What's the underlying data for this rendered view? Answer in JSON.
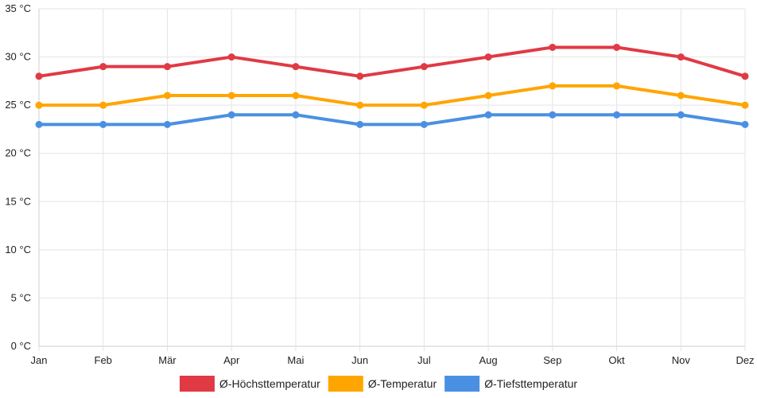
{
  "chart_data": {
    "type": "line",
    "categories": [
      "Jan",
      "Feb",
      "Mär",
      "Apr",
      "Mai",
      "Jun",
      "Jul",
      "Aug",
      "Sep",
      "Okt",
      "Nov",
      "Dez"
    ],
    "y_unit": "°C",
    "y_ticks": [
      0,
      5,
      10,
      15,
      20,
      25,
      30,
      35
    ],
    "ylim": [
      0,
      35
    ],
    "grid": true,
    "legend_position": "bottom",
    "series": [
      {
        "name": "Ø-Höchsttemperatur",
        "color": "#e03a45",
        "values": [
          28,
          29,
          29,
          30,
          29,
          28,
          29,
          30,
          31,
          31,
          30,
          28
        ]
      },
      {
        "name": "Ø-Temperatur",
        "color": "#ffa500",
        "values": [
          25,
          25,
          26,
          26,
          26,
          25,
          25,
          26,
          27,
          27,
          26,
          25
        ]
      },
      {
        "name": "Ø-Tiefsttemperatur",
        "color": "#4a90e2",
        "values": [
          23,
          23,
          23,
          24,
          24,
          23,
          23,
          24,
          24,
          24,
          24,
          23
        ]
      }
    ]
  }
}
